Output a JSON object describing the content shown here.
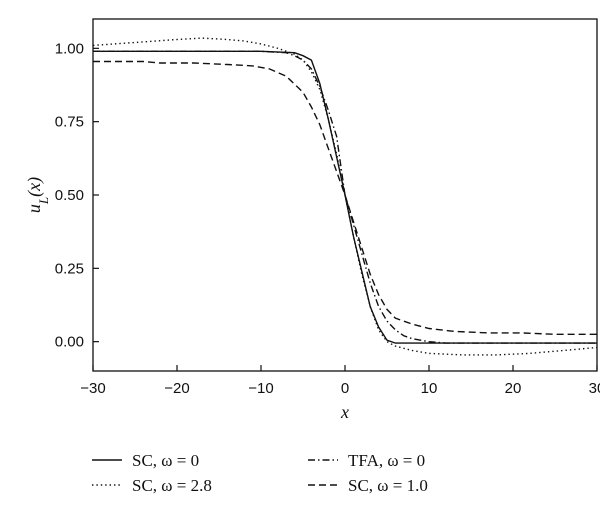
{
  "chart_data": {
    "type": "line",
    "xlabel": "x",
    "ylabel": "u_L(x)",
    "xlim": [
      -30,
      30
    ],
    "ylim": [
      -0.1,
      1.1
    ],
    "x_ticks": [
      -30,
      -20,
      -10,
      0,
      10,
      20,
      30
    ],
    "y_ticks": [
      0.0,
      0.25,
      0.5,
      0.75,
      1.0
    ],
    "x_tick_labels": [
      "−30",
      "−20",
      "−10",
      "0",
      "10",
      "20",
      "30"
    ],
    "y_tick_labels": [
      "0.00",
      "0.25",
      "0.50",
      "0.75",
      "1.00"
    ],
    "grid": false,
    "legend_position": "bottom",
    "series": [
      {
        "name": "SC, ω = 0",
        "dash": "solid",
        "x": [
          -30,
          -10,
          -6,
          -5,
          -4,
          -3,
          -2,
          -1,
          0,
          1,
          2,
          3,
          4,
          5,
          6,
          10,
          30
        ],
        "y": [
          0.99,
          0.99,
          0.985,
          0.975,
          0.96,
          0.88,
          0.76,
          0.63,
          0.5,
          0.36,
          0.24,
          0.12,
          0.05,
          0.005,
          -0.005,
          -0.005,
          -0.005
        ]
      },
      {
        "name": "SC, ω = 2.8",
        "dash": "dotted",
        "x": [
          -30,
          -25,
          -20,
          -17,
          -14,
          -12,
          -10,
          -8,
          -6,
          -5,
          -4,
          -3,
          -2,
          -1,
          0,
          1,
          2,
          3,
          4,
          5,
          6,
          8,
          10,
          14,
          18,
          22,
          26,
          30
        ],
        "y": [
          1.01,
          1.02,
          1.03,
          1.035,
          1.03,
          1.025,
          1.015,
          1.0,
          0.98,
          0.96,
          0.92,
          0.86,
          0.76,
          0.64,
          0.5,
          0.36,
          0.23,
          0.12,
          0.04,
          0.0,
          -0.015,
          -0.03,
          -0.04,
          -0.045,
          -0.045,
          -0.04,
          -0.03,
          -0.02
        ]
      },
      {
        "name": "TFA, ω = 0",
        "dash": "dashdot",
        "x": [
          -30,
          -15,
          -10,
          -7,
          -6,
          -5,
          -4,
          -3,
          -2,
          -1,
          0,
          1,
          2,
          3,
          4,
          5,
          6,
          7,
          8,
          9,
          10,
          12,
          30
        ],
        "y": [
          0.99,
          0.99,
          0.99,
          0.985,
          0.975,
          0.96,
          0.93,
          0.87,
          0.79,
          0.7,
          0.5,
          0.4,
          0.3,
          0.2,
          0.12,
          0.07,
          0.04,
          0.02,
          0.01,
          0.005,
          0.0,
          -0.005,
          -0.005
        ]
      },
      {
        "name": "SC, ω = 1.0",
        "dash": "dashed",
        "x": [
          -30,
          -24,
          -22,
          -18,
          -14,
          -11,
          -9,
          -7,
          -5,
          -4,
          -3,
          -2,
          -1,
          0,
          1,
          2,
          3,
          4,
          5,
          6,
          8,
          10,
          13,
          17,
          21,
          25,
          30
        ],
        "y": [
          0.955,
          0.955,
          0.95,
          0.95,
          0.945,
          0.94,
          0.93,
          0.905,
          0.85,
          0.8,
          0.74,
          0.66,
          0.58,
          0.5,
          0.41,
          0.32,
          0.23,
          0.16,
          0.11,
          0.08,
          0.06,
          0.045,
          0.035,
          0.03,
          0.03,
          0.025,
          0.025
        ]
      }
    ]
  }
}
